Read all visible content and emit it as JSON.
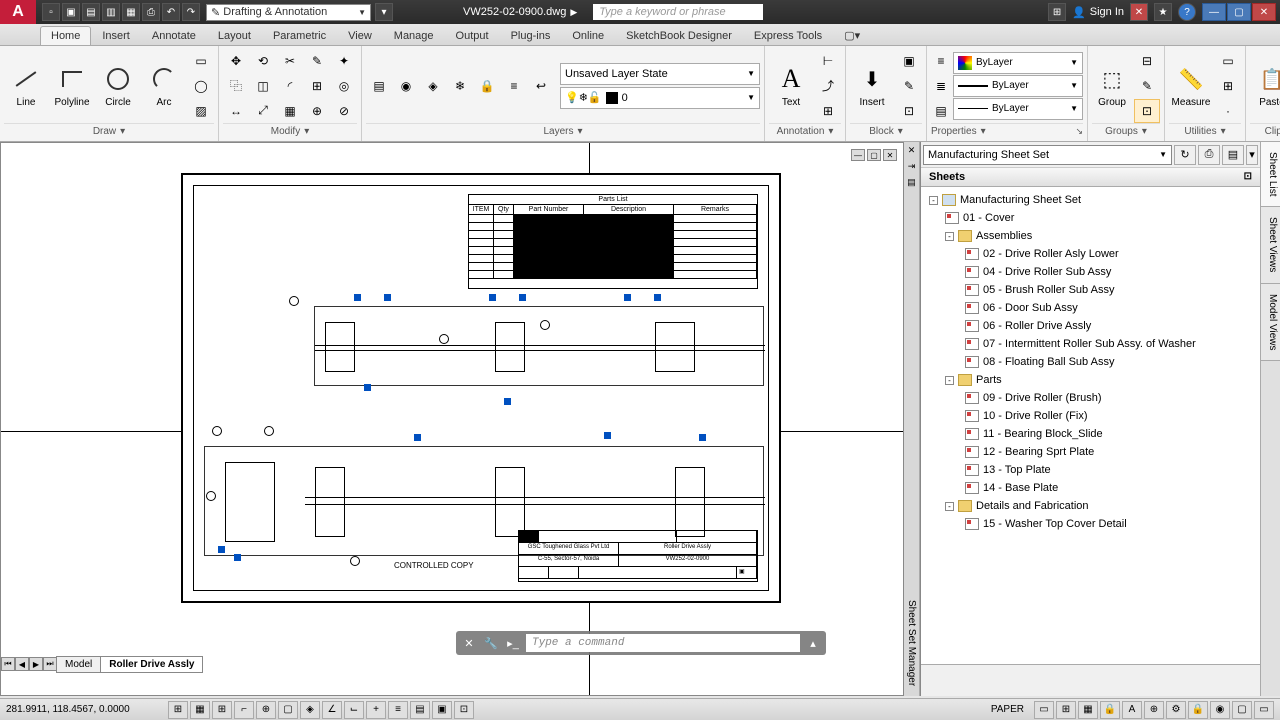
{
  "title": {
    "filename": "VW252-02-0900.dwg",
    "workspace": "Drafting & Annotation",
    "search_placeholder": "Type a keyword or phrase",
    "signin": "Sign In"
  },
  "tabs": [
    "Home",
    "Insert",
    "Annotate",
    "Layout",
    "Parametric",
    "View",
    "Manage",
    "Output",
    "Plug-ins",
    "Online",
    "SketchBook Designer",
    "Express Tools"
  ],
  "active_tab": 0,
  "ribbon": {
    "draw": {
      "title": "Draw",
      "line": "Line",
      "polyline": "Polyline",
      "circle": "Circle",
      "arc": "Arc"
    },
    "modify": {
      "title": "Modify"
    },
    "layers": {
      "title": "Layers",
      "state": "Unsaved Layer State",
      "current": "0"
    },
    "annotation": {
      "title": "Annotation",
      "text": "Text"
    },
    "block": {
      "title": "Block",
      "insert": "Insert"
    },
    "properties": {
      "title": "Properties",
      "color": "ByLayer",
      "lineweight": "ByLayer",
      "linetype": "ByLayer"
    },
    "groups": {
      "title": "Groups",
      "group": "Group"
    },
    "utilities": {
      "title": "Utilities",
      "measure": "Measure"
    },
    "clipboard": {
      "title": "Clipboard",
      "paste": "Paste"
    },
    "clipof": "Clip Of..."
  },
  "ssm": {
    "title": "Sheet Set Manager",
    "combo": "Manufacturing Sheet Set",
    "sheets_header": "Sheets",
    "tabs": [
      "Sheet List",
      "Sheet Views",
      "Model Views"
    ],
    "root": "Manufacturing Sheet Set",
    "tree": [
      {
        "label": "01 - Cover",
        "level": 1,
        "type": "sheet"
      },
      {
        "label": "Assemblies",
        "level": 1,
        "type": "folder",
        "exp": "-"
      },
      {
        "label": "02 - Drive Roller Asly Lower",
        "level": 2,
        "type": "sheet"
      },
      {
        "label": "04 - Drive Roller Sub Assy",
        "level": 2,
        "type": "sheet"
      },
      {
        "label": "05 - Brush Roller Sub Assy",
        "level": 2,
        "type": "sheet"
      },
      {
        "label": "06 - Door Sub Assy",
        "level": 2,
        "type": "sheet"
      },
      {
        "label": "06 - Roller Drive Assly",
        "level": 2,
        "type": "sheet"
      },
      {
        "label": "07 - Intermittent Roller Sub Assy. of Washer",
        "level": 2,
        "type": "sheet"
      },
      {
        "label": "08 - Floating Ball Sub Assy",
        "level": 2,
        "type": "sheet"
      },
      {
        "label": "Parts",
        "level": 1,
        "type": "folder",
        "exp": "-"
      },
      {
        "label": "09 - Drive Roller (Brush)",
        "level": 2,
        "type": "sheet"
      },
      {
        "label": "10 - Drive Roller (Fix)",
        "level": 2,
        "type": "sheet"
      },
      {
        "label": "11 - Bearing Block_Slide",
        "level": 2,
        "type": "sheet"
      },
      {
        "label": "12 - Bearing Sprt Plate",
        "level": 2,
        "type": "sheet"
      },
      {
        "label": "13 - Top Plate",
        "level": 2,
        "type": "sheet"
      },
      {
        "label": "14 - Base Plate",
        "level": 2,
        "type": "sheet"
      },
      {
        "label": "Details and Fabrication",
        "level": 1,
        "type": "folder",
        "exp": "-"
      },
      {
        "label": "15 - Washer Top Cover Detail",
        "level": 2,
        "type": "sheet"
      }
    ]
  },
  "drawing": {
    "parts_list_title": "Parts List",
    "pl_headers": {
      "item": "ITEM",
      "qty": "Qty",
      "partno": "Part Number",
      "desc": "Description",
      "remarks": "Remarks"
    },
    "controlled": "CONTROLLED COPY",
    "titleblock": {
      "company": "GSC Toughened Glass Pvt Ltd",
      "addr": "C-55, Sector-57, Noida",
      "title": "Roller Drive Assly",
      "dwgno": "VW252-02-0900"
    }
  },
  "cmdline": {
    "placeholder": "Type a command"
  },
  "layout_tabs": {
    "model": "Model",
    "layout": "Roller Drive Assly"
  },
  "status": {
    "coords": "281.9911, 118.4567, 0.0000",
    "space": "PAPER"
  },
  "colors": {
    "grip": "#0050c0",
    "accent": "#c41e3a"
  }
}
